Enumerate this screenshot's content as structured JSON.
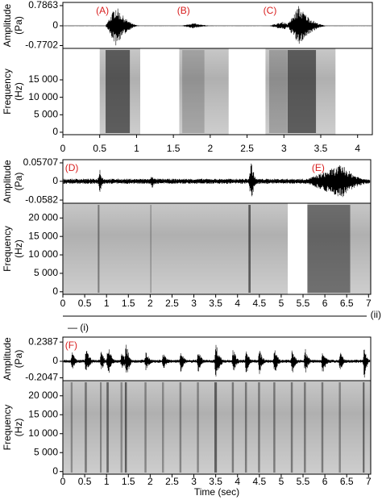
{
  "chart_data": [
    {
      "type": "spectrogram",
      "amplitude_label": [
        "Amplitude",
        "(Pa)"
      ],
      "frequency_label": [
        "Frequency",
        "(Hz)"
      ],
      "xlim": [
        0,
        4.2
      ],
      "xticks": [
        0,
        0.5,
        1,
        1.5,
        2,
        2.5,
        3,
        3.5,
        4
      ],
      "amplitude_ylim": [
        -0.88,
        0.91
      ],
      "amplitude_yticks": [
        0.7863,
        0,
        -0.7702
      ],
      "frequency_ylim": [
        -700,
        24000
      ],
      "frequency_yticks": [
        {
          "value": 15000,
          "label": "15 000"
        },
        {
          "value": 10000,
          "label": "10 000"
        },
        {
          "value": 5000,
          "label": "5 000"
        },
        0
      ],
      "noise_amplitude": 0.01,
      "segments": [
        [
          0.5,
          1.05
        ],
        [
          1.58,
          2.25
        ],
        [
          2.75,
          3.7
        ]
      ],
      "events": [
        {
          "start": 0.58,
          "peak": 0.72,
          "end": 1.05,
          "amp": 0.78
        },
        {
          "start": 1.62,
          "peak": 1.76,
          "end": 2.05,
          "amp": 0.1
        },
        {
          "start": 2.8,
          "peak": 3.0,
          "end": 3.15,
          "amp": 0.15
        },
        {
          "start": 3.05,
          "peak": 3.2,
          "end": 3.6,
          "amp": 0.78
        }
      ],
      "annotations": [
        {
          "text": "(A)",
          "x": 0.45
        },
        {
          "text": "(B)",
          "x": 1.55
        },
        {
          "text": "(C)",
          "x": 2.72
        }
      ]
    },
    {
      "type": "spectrogram",
      "amplitude_label": [
        "Amplitude",
        "(Pa)"
      ],
      "frequency_label": [
        "Frequency",
        "(Hz)"
      ],
      "xlim": [
        0,
        7.05
      ],
      "xticks": [
        0,
        0.5,
        1,
        1.5,
        2,
        2.5,
        3,
        3.5,
        4,
        4.5,
        5,
        5.5,
        6,
        6.5,
        7
      ],
      "amplitude_ylim": [
        -0.068,
        0.067
      ],
      "amplitude_yticks": [
        0.05707,
        0,
        -0.0582
      ],
      "frequency_ylim": [
        -700,
        24000
      ],
      "frequency_yticks": [
        {
          "value": 20000,
          "label": "20 000"
        },
        {
          "value": 15000,
          "label": "15 000"
        },
        {
          "value": 10000,
          "label": "10 000"
        },
        {
          "value": 5000,
          "label": "5 000"
        },
        0
      ],
      "noise_amplitude": 0.008,
      "segments": [
        [
          0,
          5.15
        ],
        [
          5.6,
          7.05
        ]
      ],
      "events": [
        {
          "start": 0.8,
          "peak": 0.85,
          "end": 0.95,
          "amp": 0.035
        },
        {
          "start": 2.0,
          "peak": 2.05,
          "end": 2.12,
          "amp": 0.015
        },
        {
          "start": 4.25,
          "peak": 4.32,
          "end": 4.45,
          "amp": 0.057
        },
        {
          "start": 5.6,
          "peak": 6.4,
          "end": 7.0,
          "amp": 0.045
        }
      ],
      "annotations": [
        {
          "text": "(D)",
          "x": 0.05
        },
        {
          "text": "(E)",
          "x": 5.7
        }
      ],
      "panel_label": "(ii)",
      "sub_label": "— (i)"
    },
    {
      "type": "spectrogram",
      "amplitude_label": [
        "Amplitude",
        "(Pa)"
      ],
      "frequency_label": [
        "Frequency",
        "(Hz)"
      ],
      "xlim": [
        0,
        7.05
      ],
      "xticks": [
        0,
        0.5,
        1,
        1.5,
        2,
        2.5,
        3,
        3.5,
        4,
        4.5,
        5,
        5.5,
        6,
        6.5,
        7
      ],
      "amplitude_ylim": [
        -0.24,
        0.3
      ],
      "amplitude_yticks": [
        0.2387,
        0,
        -0.2047
      ],
      "frequency_ylim": [
        -700,
        24000
      ],
      "frequency_yticks": [
        {
          "value": 20000,
          "label": "20 000"
        },
        {
          "value": 15000,
          "label": "15 000"
        },
        {
          "value": 10000,
          "label": "10 000"
        },
        {
          "value": 5000,
          "label": "5 000"
        },
        0
      ],
      "noise_amplitude": 0.02,
      "segments": [
        [
          0,
          7.05
        ]
      ],
      "events": [
        {
          "start": 0.18,
          "peak": 0.22,
          "end": 0.35,
          "amp": 0.1
        },
        {
          "start": 0.5,
          "peak": 0.53,
          "end": 0.7,
          "amp": 0.15
        },
        {
          "start": 0.85,
          "peak": 0.88,
          "end": 1.0,
          "amp": 0.12
        },
        {
          "start": 1.0,
          "peak": 1.03,
          "end": 1.2,
          "amp": 0.2
        },
        {
          "start": 1.32,
          "peak": 1.35,
          "end": 1.5,
          "amp": 0.1
        },
        {
          "start": 1.42,
          "peak": 1.45,
          "end": 1.6,
          "amp": 0.23
        },
        {
          "start": 1.87,
          "peak": 1.9,
          "end": 2.05,
          "amp": 0.12
        },
        {
          "start": 2.27,
          "peak": 2.3,
          "end": 2.45,
          "amp": 0.1
        },
        {
          "start": 2.67,
          "peak": 2.7,
          "end": 2.85,
          "amp": 0.12
        },
        {
          "start": 3.07,
          "peak": 3.1,
          "end": 3.25,
          "amp": 0.12
        },
        {
          "start": 3.47,
          "peak": 3.5,
          "end": 3.7,
          "amp": 0.22
        },
        {
          "start": 3.87,
          "peak": 3.9,
          "end": 4.05,
          "amp": 0.15
        },
        {
          "start": 4.17,
          "peak": 4.2,
          "end": 4.35,
          "amp": 0.15
        },
        {
          "start": 4.47,
          "peak": 4.5,
          "end": 4.65,
          "amp": 0.15
        },
        {
          "start": 4.82,
          "peak": 4.85,
          "end": 5.0,
          "amp": 0.15
        },
        {
          "start": 5.22,
          "peak": 5.25,
          "end": 5.4,
          "amp": 0.15
        },
        {
          "start": 5.52,
          "peak": 5.55,
          "end": 5.7,
          "amp": 0.15
        },
        {
          "start": 5.92,
          "peak": 5.95,
          "end": 6.1,
          "amp": 0.15
        },
        {
          "start": 6.32,
          "peak": 6.35,
          "end": 6.5,
          "amp": 0.12
        },
        {
          "start": 6.87,
          "peak": 6.9,
          "end": 7.02,
          "amp": 0.22
        }
      ],
      "annotations": [
        {
          "text": "(F)",
          "x": 0.05
        }
      ],
      "xlabel": "Time (sec)"
    }
  ]
}
